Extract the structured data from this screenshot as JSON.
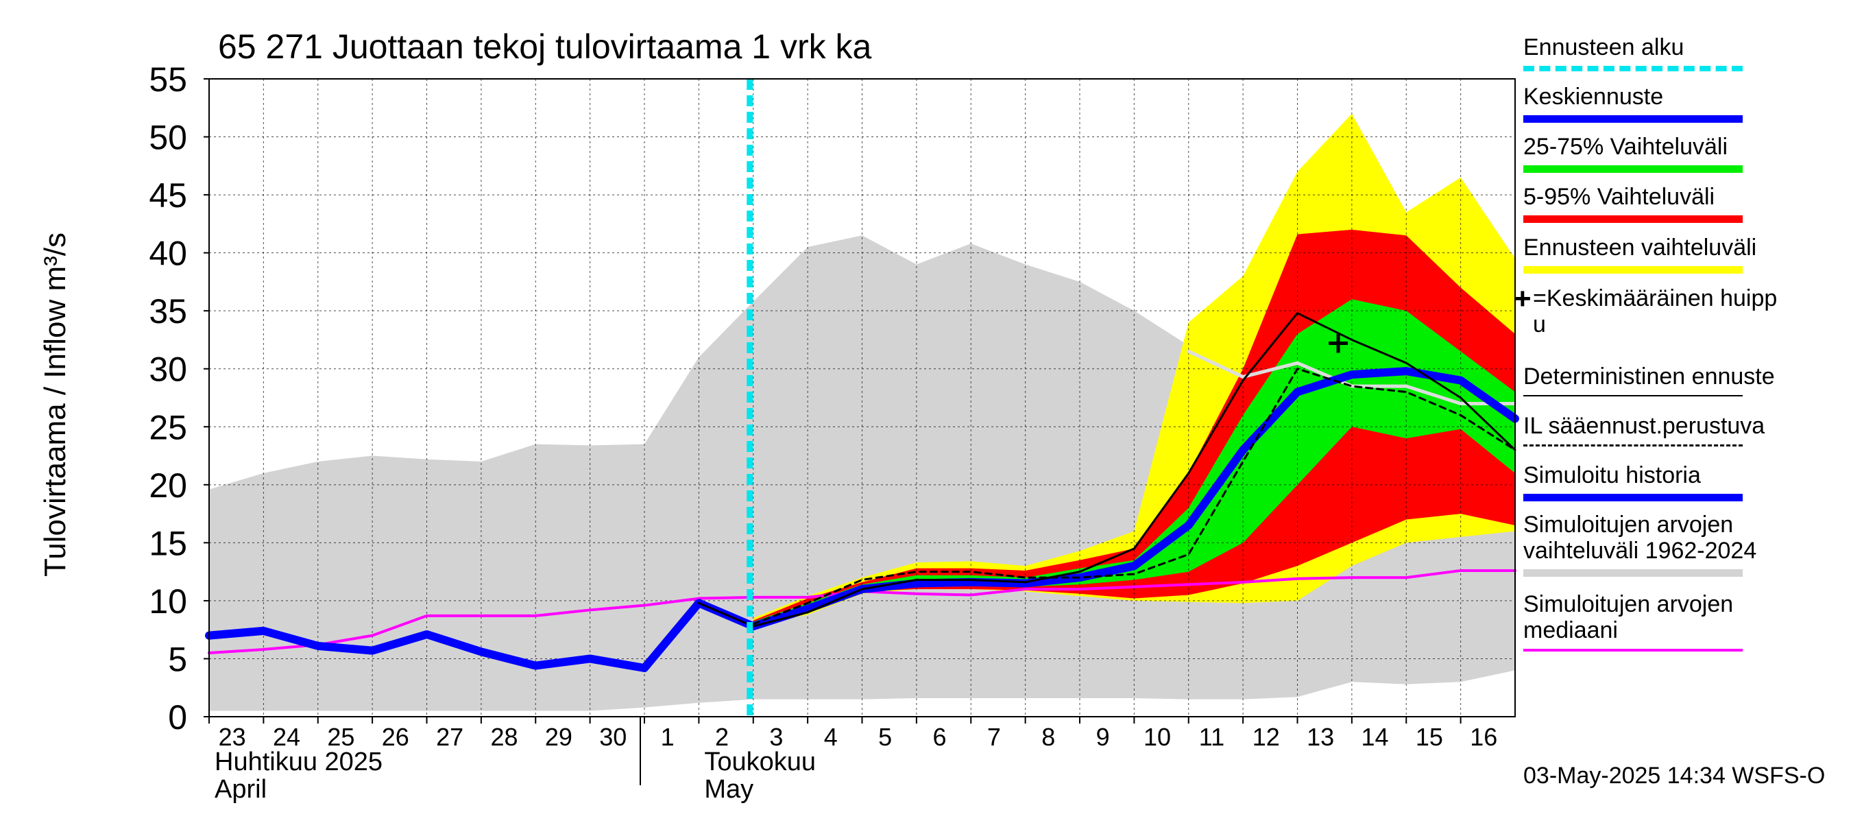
{
  "chart_data": {
    "type": "area",
    "title": "65 271 Juottaan tekoj tulovirtaama 1 vrk ka",
    "ylabel": "Tulovirtaama / Inflow    m³/s",
    "ylim": [
      0,
      55
    ],
    "y_ticks": [
      0,
      5,
      10,
      15,
      20,
      25,
      30,
      35,
      40,
      45,
      50,
      55
    ],
    "grid": true,
    "x_range": [
      "2025-04-23",
      "2025-05-17"
    ],
    "x_ticks": [
      "2025-04-23",
      "2025-04-24",
      "2025-04-25",
      "2025-04-26",
      "2025-04-27",
      "2025-04-28",
      "2025-04-29",
      "2025-04-30",
      "2025-05-01",
      "2025-05-02",
      "2025-05-03",
      "2025-05-04",
      "2025-05-05",
      "2025-05-06",
      "2025-05-07",
      "2025-05-08",
      "2025-05-09",
      "2025-05-10",
      "2025-05-11",
      "2025-05-12",
      "2025-05-13",
      "2025-05-14",
      "2025-05-15",
      "2025-05-16"
    ],
    "x_tick_labels": [
      "23",
      "24",
      "25",
      "26",
      "27",
      "28",
      "29",
      "30",
      "1",
      "2",
      "3",
      "4",
      "5",
      "6",
      "7",
      "8",
      "9",
      "10",
      "11",
      "12",
      "13",
      "14",
      "15",
      "16"
    ],
    "month_labels": [
      {
        "date": "2025-04-23",
        "fi": "Huhtikuu  2025",
        "en": "April"
      },
      {
        "date": "2025-05-02",
        "fi": "Toukokuu",
        "en": "May"
      }
    ],
    "month_boundary": "2025-05-01",
    "forecast_start": "2025-05-03",
    "series": [
      {
        "name": "Simuloitujen arvojen vaihteluväli 1962-2024",
        "kind": "band",
        "color": "#d3d3d3",
        "x": [
          "2025-04-23",
          "2025-04-24",
          "2025-04-25",
          "2025-04-26",
          "2025-04-27",
          "2025-04-28",
          "2025-04-29",
          "2025-04-30",
          "2025-05-01",
          "2025-05-02",
          "2025-05-03",
          "2025-05-04",
          "2025-05-05",
          "2025-05-06",
          "2025-05-07",
          "2025-05-08",
          "2025-05-09",
          "2025-05-10",
          "2025-05-11",
          "2025-05-12",
          "2025-05-13",
          "2025-05-14",
          "2025-05-15",
          "2025-05-16",
          "2025-05-17"
        ],
        "low": [
          0.5,
          0.5,
          0.5,
          0.5,
          0.5,
          0.5,
          0.5,
          0.5,
          0.8,
          1.2,
          1.5,
          1.5,
          1.5,
          1.6,
          1.6,
          1.6,
          1.6,
          1.6,
          1.5,
          1.5,
          1.7,
          3.0,
          2.8,
          3.0,
          4.0
        ],
        "high": [
          19.6,
          21.0,
          22.0,
          22.5,
          22.2,
          22.0,
          23.5,
          23.4,
          23.5,
          31.0,
          35.8,
          40.5,
          41.5,
          39.0,
          40.8,
          39.0,
          37.5,
          35.0,
          32.0,
          30.0,
          30.5,
          29.0,
          28.5,
          27.0,
          27.0
        ]
      },
      {
        "name": "Ennusteen vaihteluväli",
        "kind": "band",
        "color": "#ffff00",
        "x": [
          "2025-05-03",
          "2025-05-04",
          "2025-05-05",
          "2025-05-06",
          "2025-05-07",
          "2025-05-08",
          "2025-05-09",
          "2025-05-10",
          "2025-05-11",
          "2025-05-12",
          "2025-05-13",
          "2025-05-14",
          "2025-05-15",
          "2025-05-16",
          "2025-05-17"
        ],
        "low": [
          7.8,
          8.8,
          10.6,
          11.0,
          11.0,
          10.8,
          10.4,
          10.0,
          9.9,
          9.8,
          10.0,
          13.0,
          15.0,
          15.5,
          16.0
        ],
        "high": [
          8.5,
          10.4,
          12.0,
          13.3,
          13.4,
          13.0,
          14.3,
          16.0,
          34.0,
          38.0,
          47.0,
          52.0,
          43.5,
          46.5,
          39.5
        ]
      },
      {
        "name": "5-95% Vaihteluväli",
        "kind": "band",
        "color": "#ff0000",
        "x": [
          "2025-05-03",
          "2025-05-04",
          "2025-05-05",
          "2025-05-06",
          "2025-05-07",
          "2025-05-08",
          "2025-05-09",
          "2025-05-10",
          "2025-05-11",
          "2025-05-12",
          "2025-05-13",
          "2025-05-14",
          "2025-05-15",
          "2025-05-16",
          "2025-05-17"
        ],
        "low": [
          8.0,
          9.0,
          10.8,
          11.0,
          11.0,
          10.9,
          10.6,
          10.2,
          10.5,
          11.5,
          13.0,
          15.0,
          17.0,
          17.5,
          16.5
        ],
        "high": [
          8.3,
          10.2,
          11.6,
          12.8,
          12.8,
          12.6,
          13.5,
          14.5,
          21.0,
          30.0,
          41.6,
          42.0,
          41.5,
          37.0,
          33.0
        ]
      },
      {
        "name": "25-75% Vaihteluväli",
        "kind": "band",
        "color": "#00ee00",
        "x": [
          "2025-05-03",
          "2025-05-04",
          "2025-05-05",
          "2025-05-06",
          "2025-05-07",
          "2025-05-08",
          "2025-05-09",
          "2025-05-10",
          "2025-05-11",
          "2025-05-12",
          "2025-05-13",
          "2025-05-14",
          "2025-05-15",
          "2025-05-16",
          "2025-05-17"
        ],
        "low": [
          8.0,
          9.2,
          11.0,
          11.2,
          11.3,
          11.2,
          11.4,
          11.8,
          12.5,
          15.0,
          20.0,
          25.0,
          24.0,
          24.8,
          21.0
        ],
        "high": [
          8.2,
          9.8,
          11.4,
          12.2,
          12.2,
          12.0,
          12.8,
          13.5,
          18.0,
          26.0,
          33.0,
          36.0,
          35.0,
          31.5,
          28.0
        ]
      },
      {
        "name": "Simuloitujen arvojen mediaani",
        "kind": "line",
        "color": "#ff00ff",
        "x": [
          "2025-04-23",
          "2025-04-24",
          "2025-04-25",
          "2025-04-26",
          "2025-04-27",
          "2025-04-28",
          "2025-04-29",
          "2025-04-30",
          "2025-05-01",
          "2025-05-02",
          "2025-05-03",
          "2025-05-04",
          "2025-05-05",
          "2025-05-06",
          "2025-05-07",
          "2025-05-08",
          "2025-05-09",
          "2025-05-10",
          "2025-05-11",
          "2025-05-12",
          "2025-05-13",
          "2025-05-14",
          "2025-05-15",
          "2025-05-16",
          "2025-05-17"
        ],
        "y": [
          5.5,
          5.8,
          6.2,
          7.0,
          8.7,
          8.7,
          8.7,
          9.2,
          9.6,
          10.2,
          10.3,
          10.3,
          10.8,
          10.6,
          10.5,
          11.0,
          11.0,
          11.2,
          11.4,
          11.6,
          11.9,
          12.0,
          12.0,
          12.6,
          12.6
        ]
      },
      {
        "name": "Simuloitu historia",
        "kind": "line",
        "color": "#0000ff",
        "x": [
          "2025-04-23",
          "2025-04-24",
          "2025-04-25",
          "2025-04-26",
          "2025-04-27",
          "2025-04-28",
          "2025-04-29",
          "2025-04-30",
          "2025-05-01",
          "2025-05-02",
          "2025-05-03"
        ],
        "y": [
          7.0,
          7.4,
          6.1,
          5.7,
          7.1,
          5.6,
          4.4,
          5.0,
          4.2,
          9.8,
          7.8
        ]
      },
      {
        "name": "Keskiennuste",
        "kind": "line",
        "color": "#0000ff",
        "x": [
          "2025-05-03",
          "2025-05-04",
          "2025-05-05",
          "2025-05-06",
          "2025-05-07",
          "2025-05-08",
          "2025-05-09",
          "2025-05-10",
          "2025-05-11",
          "2025-05-12",
          "2025-05-13",
          "2025-05-14",
          "2025-05-15",
          "2025-05-16",
          "2025-05-17"
        ],
        "y": [
          7.8,
          9.3,
          11.0,
          11.5,
          11.6,
          11.5,
          12.0,
          13.0,
          16.5,
          23.0,
          28.0,
          29.5,
          29.8,
          29.0,
          25.7
        ]
      },
      {
        "name": "Deterministinen ennuste",
        "kind": "line",
        "color": "#000000",
        "x": [
          "2025-05-02",
          "2025-05-03",
          "2025-05-04",
          "2025-05-05",
          "2025-05-06",
          "2025-05-07",
          "2025-05-08",
          "2025-05-09",
          "2025-05-10",
          "2025-05-11",
          "2025-05-12",
          "2025-05-13",
          "2025-05-14",
          "2025-05-15",
          "2025-05-16",
          "2025-05-17"
        ],
        "y": [
          9.8,
          7.8,
          9.0,
          11.0,
          11.8,
          11.8,
          11.6,
          12.5,
          14.5,
          21.0,
          29.0,
          34.8,
          32.5,
          30.5,
          27.5,
          23.0
        ]
      },
      {
        "name": "IL sääennust.perustuva",
        "kind": "line",
        "color": "#000000",
        "x": [
          "2025-05-03",
          "2025-05-04",
          "2025-05-05",
          "2025-05-06",
          "2025-05-07",
          "2025-05-08",
          "2025-05-09",
          "2025-05-10",
          "2025-05-11",
          "2025-05-12",
          "2025-05-13",
          "2025-05-14",
          "2025-05-15",
          "2025-05-16",
          "2025-05-17"
        ],
        "y": [
          8.0,
          9.8,
          11.8,
          12.5,
          12.5,
          12.0,
          12.0,
          12.3,
          14.0,
          22.0,
          30.0,
          28.5,
          28.0,
          26.0,
          23.0
        ]
      },
      {
        "name": "Deterministinen ennuste (harmaa)",
        "kind": "line",
        "color": "#dddddd",
        "x": [
          "2025-05-11",
          "2025-05-12",
          "2025-05-13",
          "2025-05-14",
          "2025-05-15",
          "2025-05-16",
          "2025-05-17"
        ],
        "y": [
          31.5,
          29.3,
          30.5,
          28.5,
          28.5,
          27.0,
          27.0
        ]
      }
    ],
    "mean_peak": {
      "x": "2025-05-13T18:00",
      "y": 32.2
    }
  },
  "legend": {
    "items": [
      {
        "key": "forecast_start",
        "label": "Ennusteen alku",
        "color": "#00e5ee",
        "style": "dashed"
      },
      {
        "key": "mean_forecast",
        "label": "Keskiennuste",
        "color": "#0000ff",
        "style": "thick"
      },
      {
        "key": "range_25_75",
        "label": "25-75% Vaihteluväli",
        "color": "#00ee00",
        "style": "thick"
      },
      {
        "key": "range_5_95",
        "label": "5-95% Vaihteluväli",
        "color": "#ff0000",
        "style": "thick"
      },
      {
        "key": "forecast_range",
        "label": "Ennusteen vaihteluväli",
        "color": "#ffff00",
        "style": "thick"
      },
      {
        "key": "mean_peak",
        "label": "=Keskimääräinen huipp\nu",
        "color": "#000000",
        "style": "none"
      },
      {
        "key": "deterministic",
        "label": "Deterministinen ennuste",
        "color": "#000000",
        "style": "thin"
      },
      {
        "key": "weather_based",
        "label": "IL sääennust.perustuva",
        "color": "#000000",
        "style": "dotted"
      },
      {
        "key": "sim_history",
        "label": "Simuloitu historia",
        "color": "#0000ff",
        "style": "thick"
      },
      {
        "key": "sim_range",
        "label": "Simuloitujen arvojen\nvaihteluväli 1962-2024",
        "color": "#d3d3d3",
        "style": "thick"
      },
      {
        "key": "sim_median",
        "label": "Simuloitujen arvojen\nmediaani",
        "color": "#ff00ff",
        "style": "medium"
      }
    ]
  },
  "timestamp": "03-May-2025 14:34 WSFS-O"
}
